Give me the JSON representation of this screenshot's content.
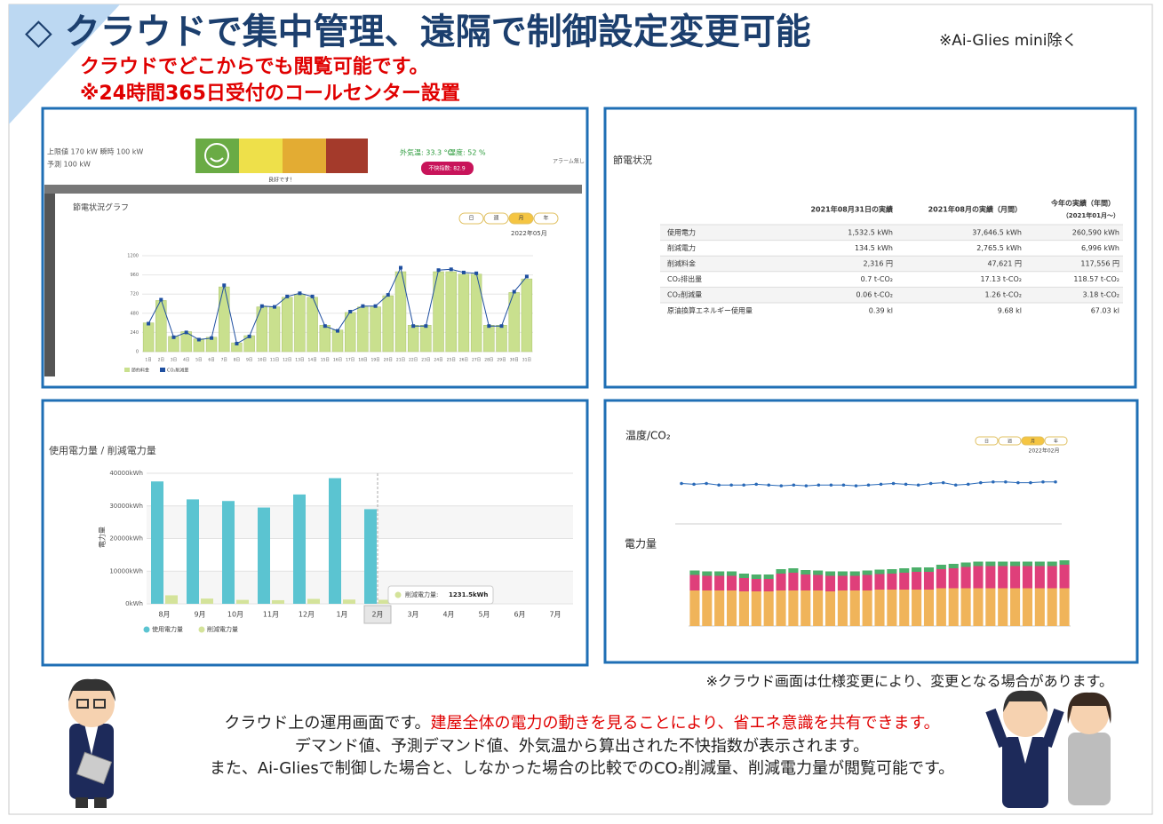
{
  "header": {
    "title": "◇ クラウドで集中管理、遠隔で制御設定変更可能",
    "note": "※Ai-Glies mini除く",
    "subtitle": [
      "クラウドでどこからでも閲覧可能です。",
      "※24時間365日受付のコールセンター設置"
    ]
  },
  "dashboard": {
    "limits": "上限値 170 kW 瞬時 100 kW",
    "forecast": "予測 100 kW",
    "status": "良好です！",
    "temperature": "外気温: 33.3 °C",
    "humidity": "湿度: 52 %",
    "discomfort": "不快指数: 82.9",
    "alarm": "アラーム無し",
    "chart_data": {
      "type": "bar",
      "title": "節電状況グラフ",
      "tabs": [
        "日",
        "週",
        "月",
        "年"
      ],
      "date": "2022年05月",
      "categories": [
        "1日",
        "2日",
        "3日",
        "4日",
        "5日",
        "6日",
        "7日",
        "8日",
        "9日",
        "10日",
        "11日",
        "12日",
        "13日",
        "14日",
        "15日",
        "16日",
        "17日",
        "18日",
        "19日",
        "20日",
        "21日",
        "22日",
        "23日",
        "24日",
        "25日",
        "26日",
        "27日",
        "28日",
        "29日",
        "30日",
        "31日"
      ],
      "series": [
        {
          "name": "節約料金",
          "color": "#c9e08e",
          "type": "bar",
          "values": [
            360,
            640,
            190,
            250,
            160,
            180,
            810,
            110,
            200,
            560,
            560,
            680,
            720,
            680,
            330,
            270,
            490,
            560,
            560,
            700,
            1000,
            330,
            330,
            1000,
            1000,
            970,
            970,
            330,
            330,
            740,
            910
          ]
        },
        {
          "name": "CO₂削減量",
          "color": "#1f4fa0",
          "type": "line",
          "values": [
            350,
            650,
            180,
            240,
            150,
            170,
            830,
            100,
            190,
            570,
            560,
            690,
            730,
            690,
            320,
            260,
            500,
            570,
            570,
            710,
            1050,
            320,
            320,
            1020,
            1030,
            990,
            980,
            320,
            320,
            750,
            940
          ]
        }
      ],
      "ylim": [
        0,
        1200
      ],
      "yticks": [
        0,
        240,
        480,
        720,
        960,
        1200
      ],
      "grid": true
    }
  },
  "status_table": {
    "title": "節電状況",
    "headers": [
      "2021年08月31日の実績",
      "2021年08月の実績（月間）",
      "今年の実績（年間）",
      "（2021年01月〜）"
    ],
    "rows": [
      [
        "使用電力",
        "1,532.5 kWh",
        "37,646.5 kWh",
        "260,590 kWh"
      ],
      [
        "削減電力",
        "134.5 kWh",
        "2,765.5 kWh",
        "6,996 kWh"
      ],
      [
        "削減料金",
        "2,316 円",
        "47,621 円",
        "117,556 円"
      ],
      [
        "CO₂排出量",
        "0.7 t-CO₂",
        "17.13 t-CO₂",
        "118.57 t-CO₂"
      ],
      [
        "CO₂削減量",
        "0.06 t-CO₂",
        "1.26 t-CO₂",
        "3.18 t-CO₂"
      ],
      [
        "原油換算エネルギー使用量",
        "0.39 kl",
        "9.68 kl",
        "67.03 kl"
      ]
    ]
  },
  "monthly_chart": {
    "chart_data": {
      "type": "bar",
      "title": "使用電力量 / 削減電力量",
      "y_label": "電力量",
      "categories": [
        "8月",
        "9月",
        "10月",
        "11月",
        "12月",
        "1月",
        "2月",
        "3月",
        "4月",
        "5月",
        "6月",
        "7月"
      ],
      "series": [
        {
          "name": "使用電力量",
          "color": "#5bc4d1",
          "values": [
            37500,
            32000,
            31500,
            29500,
            33500,
            38500,
            29000,
            null,
            null,
            null,
            null,
            null
          ]
        },
        {
          "name": "削減電力量",
          "color": "#d4e39a",
          "values": [
            2600,
            1600,
            1200,
            1100,
            1500,
            1300,
            1231.5,
            null,
            null,
            null,
            null,
            null
          ],
          "value_labels": [
            null,
            null,
            null,
            null,
            null,
            null,
            "1231.5kWh",
            null,
            null,
            null,
            null,
            null
          ]
        }
      ],
      "tooltip_label": "削減電力量:",
      "highlight": 6,
      "ylim": [
        0,
        40000
      ],
      "yticks": [
        {
          "value": 0,
          "label": "0kWh"
        },
        {
          "value": 10000,
          "label": "10000kWh"
        },
        {
          "value": 20000,
          "label": "20000kWh"
        },
        {
          "value": 30000,
          "label": "30000kWh"
        },
        {
          "value": 40000,
          "label": "40000kWh"
        }
      ],
      "grid": true
    }
  },
  "trend_chart": {
    "tabs": [
      "日",
      "週",
      "月",
      "年"
    ],
    "date": "2022年02月",
    "chart_data": [
      {
        "type": "line",
        "title": "温度/CO₂",
        "color": "#2a6ab8",
        "values": [
          52,
          51,
          52,
          50,
          50,
          50,
          51,
          50,
          49,
          50,
          49,
          50,
          50,
          50,
          49,
          50,
          51,
          52,
          51,
          50,
          52,
          53,
          50,
          51,
          53,
          54,
          54,
          53,
          53,
          54,
          54
        ],
        "ylim": [
          0,
          80
        ]
      },
      {
        "type": "stacked",
        "title": "電力量",
        "series": [
          {
            "color": "#f0b45a",
            "values": [
              8000,
              8000,
              8000,
              8000,
              7800,
              7800,
              7800,
              8000,
              8000,
              8000,
              8000,
              7800,
              8000,
              8000,
              8000,
              8200,
              8200,
              8200,
              8200,
              8200,
              8500,
              8500,
              8500,
              8500,
              8500,
              8500,
              8500,
              8500,
              8500,
              8500,
              8500
            ]
          },
          {
            "color": "#df3f7a",
            "values": [
              3500,
              3300,
              3300,
              3300,
              3000,
              2800,
              2800,
              3800,
              4000,
              3600,
              3500,
              3500,
              3300,
              3300,
              3500,
              3500,
              3600,
              3800,
              4000,
              4000,
              4300,
              4500,
              4800,
              5000,
              5000,
              5000,
              5000,
              5000,
              5000,
              5000,
              5300
            ]
          },
          {
            "color": "#4caf6a",
            "values": [
              1000,
              1000,
              1000,
              1000,
              1000,
              1000,
              1000,
              1000,
              1000,
              1000,
              1000,
              1000,
              1000,
              1000,
              1000,
              1000,
              1000,
              1000,
              1000,
              1000,
              1000,
              1000,
              1000,
              1000,
              1000,
              1000,
              1000,
              1000,
              1000,
              1000,
              1000
            ]
          }
        ],
        "ylim": [
          0,
          15000
        ]
      }
    ]
  },
  "footer": {
    "note": "※クラウド画面は仕様変更により、変更となる場合があります。",
    "lines": [
      [
        "クラウド上の運用画面です。",
        "建屋全体の電力の動きを見ることにより、省エネ意識を共有できます。"
      ],
      [
        "デマンド値、予測デマンド値、外気温から算出された不快指数が表示されます。"
      ],
      [
        "また、Ai-Gliesで制御した場合と、しなかった場合の比較でのCO₂削減量、削減電力量が閲覧可能です。"
      ]
    ]
  }
}
